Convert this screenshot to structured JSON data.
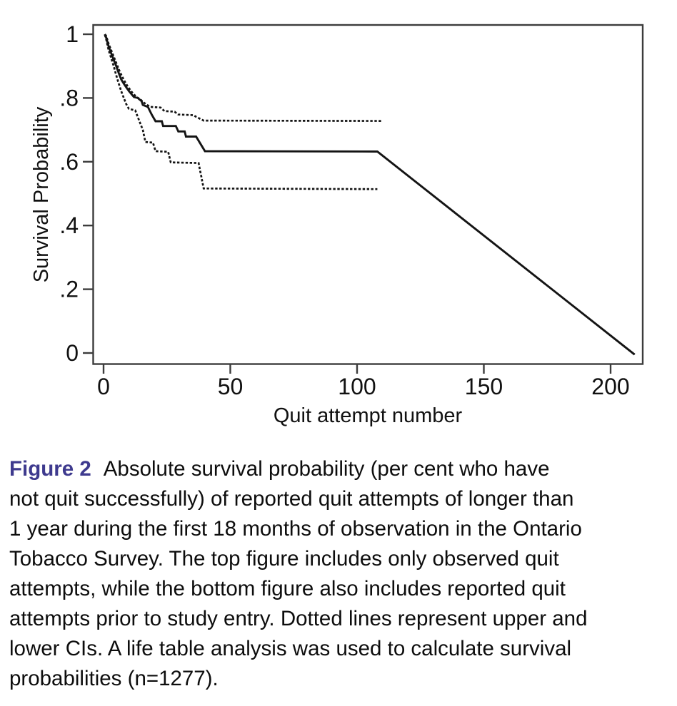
{
  "figure": {
    "label": "Figure 2",
    "label_color": "#3e3a8e",
    "caption_lines": [
      "Absolute survival probability (per cent who have",
      "not quit successfully) of reported quit attempts of longer than",
      "1 year during the first 18 months of observation in the Ontario",
      "Tobacco Survey. The top figure includes only observed quit",
      "attempts, while the bottom figure also includes reported quit",
      "attempts prior to study entry. Dotted lines represent upper and",
      "lower CIs. A life table analysis was used to calculate survival",
      "probabilities (n=1277)."
    ]
  },
  "chart_data": {
    "type": "line",
    "title": "",
    "xlabel": "Quit attempt number",
    "ylabel": "Survival Probability",
    "xlim": [
      0,
      212
    ],
    "ylim": [
      0,
      1.03
    ],
    "grid": false,
    "legend": "none",
    "line_color": "#141414",
    "x_ticks": [
      {
        "value": 0,
        "label": "0"
      },
      {
        "value": 50,
        "label": "50"
      },
      {
        "value": 100,
        "label": "100"
      },
      {
        "value": 150,
        "label": "150"
      },
      {
        "value": 200,
        "label": "200"
      }
    ],
    "y_ticks": [
      {
        "value": 1.0,
        "label": "1"
      },
      {
        "value": 0.8,
        "label": ".8"
      },
      {
        "value": 0.6,
        "label": ".6"
      },
      {
        "value": 0.4,
        "label": ".4"
      },
      {
        "value": 0.2,
        "label": ".2"
      },
      {
        "value": 0.0,
        "label": "0"
      }
    ],
    "series": [
      {
        "name": "upper-ci",
        "style": "dashed",
        "points": [
          [
            0.5,
            1.0
          ],
          [
            1,
            0.995
          ],
          [
            2,
            0.97
          ],
          [
            3,
            0.95
          ],
          [
            4,
            0.93
          ],
          [
            5,
            0.91
          ],
          [
            6,
            0.89
          ],
          [
            7,
            0.873
          ],
          [
            8,
            0.857
          ],
          [
            9,
            0.843
          ],
          [
            10,
            0.831
          ],
          [
            11,
            0.82
          ],
          [
            12,
            0.811
          ],
          [
            13,
            0.803
          ],
          [
            14.5,
            0.796
          ],
          [
            15.5,
            0.788
          ],
          [
            17,
            0.779
          ],
          [
            18.5,
            0.772
          ],
          [
            22.5,
            0.77
          ],
          [
            24,
            0.759
          ],
          [
            28,
            0.757
          ],
          [
            29.5,
            0.748
          ],
          [
            35.5,
            0.746
          ],
          [
            36.5,
            0.741
          ],
          [
            39.5,
            0.729
          ],
          [
            110,
            0.728
          ]
        ]
      },
      {
        "name": "lower-ci",
        "style": "dashed",
        "points": [
          [
            0.5,
            0.998
          ],
          [
            1,
            0.985
          ],
          [
            2,
            0.95
          ],
          [
            3,
            0.925
          ],
          [
            4,
            0.9
          ],
          [
            5,
            0.871
          ],
          [
            6,
            0.845
          ],
          [
            7,
            0.821
          ],
          [
            8,
            0.8
          ],
          [
            9,
            0.78
          ],
          [
            10,
            0.766
          ],
          [
            12.5,
            0.761
          ],
          [
            14,
            0.73
          ],
          [
            15.5,
            0.7
          ],
          [
            16.5,
            0.662
          ],
          [
            19.5,
            0.66
          ],
          [
            20.5,
            0.633
          ],
          [
            25.5,
            0.631
          ],
          [
            26.5,
            0.598
          ],
          [
            37.5,
            0.596
          ],
          [
            39.5,
            0.516
          ],
          [
            108,
            0.514
          ]
        ]
      },
      {
        "name": "survival-estimate",
        "style": "solid",
        "points": [
          [
            0.5,
            1.0
          ],
          [
            1,
            0.99
          ],
          [
            2,
            0.962
          ],
          [
            3,
            0.94
          ],
          [
            4,
            0.92
          ],
          [
            5,
            0.9
          ],
          [
            6,
            0.878
          ],
          [
            7,
            0.858
          ],
          [
            8,
            0.845
          ],
          [
            9,
            0.833
          ],
          [
            10,
            0.822
          ],
          [
            11,
            0.812
          ],
          [
            12,
            0.803
          ],
          [
            13.5,
            0.8
          ],
          [
            15,
            0.79
          ],
          [
            15.5,
            0.778
          ],
          [
            17.5,
            0.772
          ],
          [
            19,
            0.748
          ],
          [
            20.5,
            0.727
          ],
          [
            23,
            0.727
          ],
          [
            23.5,
            0.712
          ],
          [
            28.5,
            0.712
          ],
          [
            29.5,
            0.695
          ],
          [
            32,
            0.695
          ],
          [
            32.5,
            0.679
          ],
          [
            36.5,
            0.679
          ],
          [
            40,
            0.633
          ],
          [
            108,
            0.632
          ],
          [
            209.5,
            -0.005
          ]
        ]
      }
    ]
  }
}
